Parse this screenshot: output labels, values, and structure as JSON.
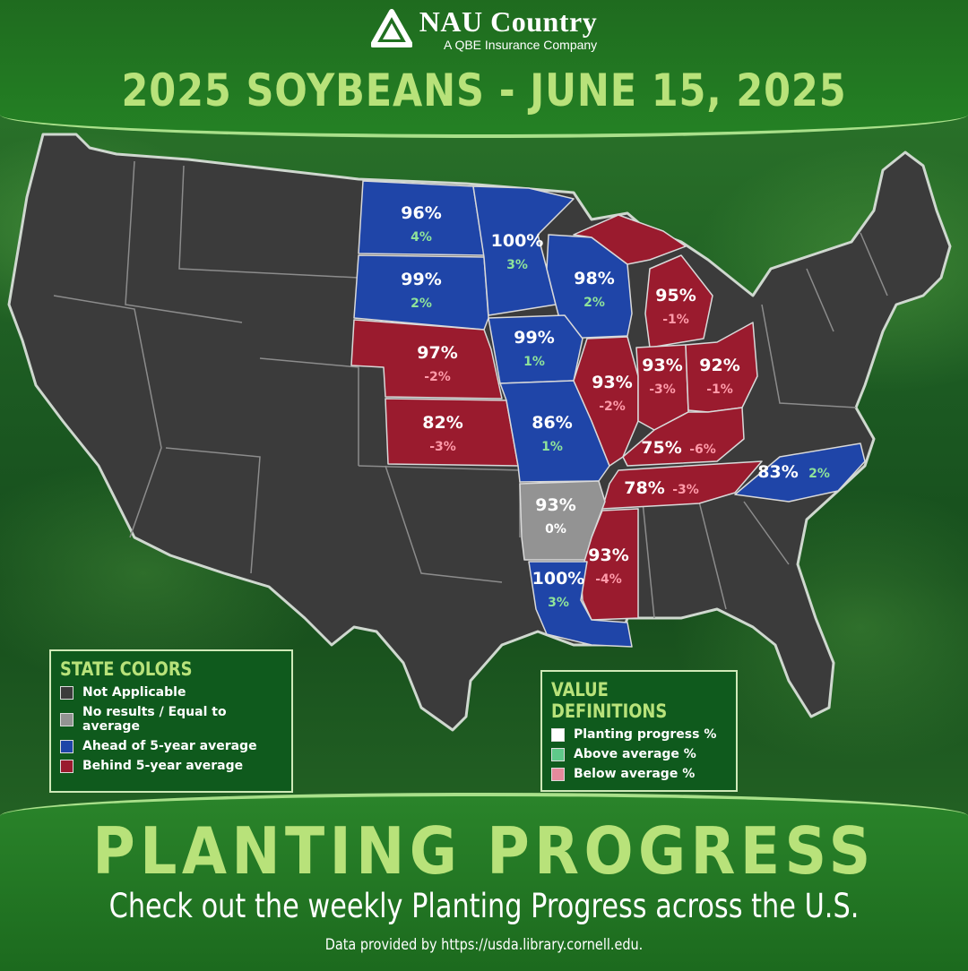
{
  "brand": {
    "name": "NAU Country",
    "subtitle": "A QBE Insurance Company"
  },
  "title": "2025 SOYBEANS - JUNE 15, 2025",
  "colors": {
    "not_applicable": "#3b3b3b",
    "equal": "#939393",
    "ahead": "#1f45a8",
    "behind": "#9a1b2e",
    "above_text": "#8fe39a",
    "below_text": "#ff9aa9",
    "accent": "#b8e27a"
  },
  "states": [
    {
      "name": "ND",
      "progress": "96%",
      "change": "4%",
      "status": "ahead"
    },
    {
      "name": "MN",
      "progress": "100%",
      "change": "3%",
      "status": "ahead"
    },
    {
      "name": "SD",
      "progress": "99%",
      "change": "2%",
      "status": "ahead"
    },
    {
      "name": "WI",
      "progress": "98%",
      "change": "2%",
      "status": "ahead"
    },
    {
      "name": "MI",
      "progress": "95%",
      "change": "-1%",
      "status": "behind"
    },
    {
      "name": "NE",
      "progress": "97%",
      "change": "-2%",
      "status": "behind"
    },
    {
      "name": "IA",
      "progress": "99%",
      "change": "1%",
      "status": "ahead"
    },
    {
      "name": "IL",
      "progress": "93%",
      "change": "-2%",
      "status": "behind"
    },
    {
      "name": "IN",
      "progress": "93%",
      "change": "-3%",
      "status": "behind"
    },
    {
      "name": "OH",
      "progress": "92%",
      "change": "-1%",
      "status": "behind"
    },
    {
      "name": "KS",
      "progress": "82%",
      "change": "-3%",
      "status": "behind"
    },
    {
      "name": "MO",
      "progress": "86%",
      "change": "1%",
      "status": "ahead"
    },
    {
      "name": "KY",
      "progress": "75%",
      "change": "-6%",
      "status": "behind"
    },
    {
      "name": "TN",
      "progress": "78%",
      "change": "-3%",
      "status": "behind"
    },
    {
      "name": "NC",
      "progress": "83%",
      "change": "2%",
      "status": "ahead"
    },
    {
      "name": "AR",
      "progress": "93%",
      "change": "0%",
      "status": "equal"
    },
    {
      "name": "MS",
      "progress": "93%",
      "change": "-4%",
      "status": "behind"
    },
    {
      "name": "LA",
      "progress": "100%",
      "change": "3%",
      "status": "ahead"
    }
  ],
  "legend_state_colors": {
    "title": "STATE COLORS",
    "items": [
      {
        "label": "Not Applicable",
        "color": "#3b3b3b"
      },
      {
        "label": "No results / Equal to average",
        "color": "#939393"
      },
      {
        "label": "Ahead of 5-year average",
        "color": "#1f45a8"
      },
      {
        "label": "Behind 5-year average",
        "color": "#9a1b2e"
      }
    ]
  },
  "legend_values": {
    "title": "VALUE DEFINITIONS",
    "items": [
      {
        "label": "Planting progress %",
        "color": "#ffffff"
      },
      {
        "label": "Above average %",
        "color": "#5fc98a"
      },
      {
        "label": "Below average %",
        "color": "#e58a9c"
      }
    ]
  },
  "footer": {
    "headline": "PLANTING PROGRESS",
    "tagline": "Check out the weekly Planting Progress across the U.S.",
    "source": "Data provided by https://usda.library.cornell.edu."
  }
}
